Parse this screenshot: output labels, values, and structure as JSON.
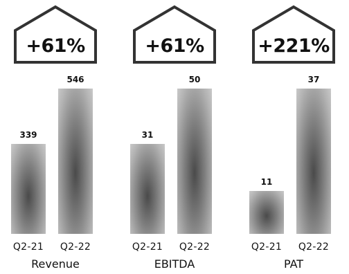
{
  "chart_data": {
    "type": "bar",
    "layout": "small-multiples",
    "grid": false,
    "legend": "none",
    "colors": {
      "bar_dark": "#4a4a4a",
      "bar_light": "#c9c9c9",
      "text": "#111111",
      "outline": "#333333"
    },
    "panels": [
      {
        "metric": "Revenue",
        "growth": "+61%",
        "categories": [
          "Q2-21",
          "Q2-22"
        ],
        "values": [
          339,
          546
        ],
        "value_labels": [
          "339",
          "546"
        ]
      },
      {
        "metric": "EBITDA",
        "growth": "+61%",
        "categories": [
          "Q2-21",
          "Q2-22"
        ],
        "values": [
          31,
          50
        ],
        "value_labels": [
          "31",
          "50"
        ]
      },
      {
        "metric": "PAT",
        "growth": "+221%",
        "categories": [
          "Q2-21",
          "Q2-22"
        ],
        "values": [
          11,
          37
        ],
        "value_labels": [
          "11",
          "37"
        ]
      }
    ]
  }
}
